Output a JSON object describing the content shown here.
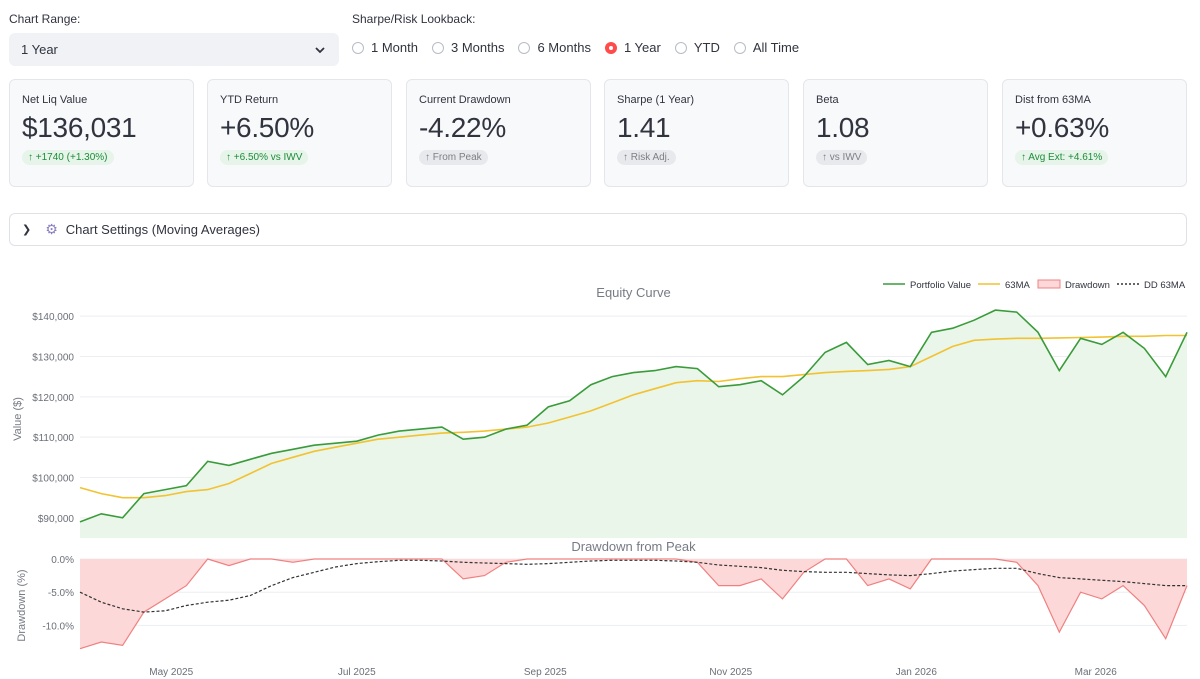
{
  "controls": {
    "range_label": "Chart Range:",
    "range_value": "1 Year",
    "lookback_label": "Sharpe/Risk Lookback:",
    "lookback_options": [
      "1 Month",
      "3 Months",
      "6 Months",
      "1 Year",
      "YTD",
      "All Time"
    ],
    "lookback_selected": "1 Year"
  },
  "metrics": [
    {
      "title": "Net Liq Value",
      "value": "$136,031",
      "delta": "↑ +1740 (+1.30%)",
      "tone": "green"
    },
    {
      "title": "YTD Return",
      "value": "+6.50%",
      "delta": "↑ +6.50% vs IWV",
      "tone": "green"
    },
    {
      "title": "Current Drawdown",
      "value": "-4.22%",
      "delta": "↑ From Peak",
      "tone": "neutral"
    },
    {
      "title": "Sharpe (1 Year)",
      "value": "1.41",
      "delta": "↑ Risk Adj.",
      "tone": "neutral"
    },
    {
      "title": "Beta",
      "value": "1.08",
      "delta": "↑ vs IWV",
      "tone": "neutral"
    },
    {
      "title": "Dist from 63MA",
      "value": "+0.63%",
      "delta": "↑ Avg Ext: +4.61%",
      "tone": "green"
    }
  ],
  "expander": {
    "label": "Chart Settings (Moving Averages)",
    "icon": "gear-icon"
  },
  "colors": {
    "portfolio": "#3a9b3a",
    "ma": "#f2c230",
    "drawdown": "#f08080",
    "dd_ma": "#333333",
    "fill": "#e9f6e9",
    "dd_fill": "#fdd8d8"
  },
  "chart_data": [
    {
      "type": "line",
      "title": "Equity Curve",
      "ylabel": "Value ($)",
      "ylim": [
        85000,
        144000
      ],
      "yticks": [
        90000,
        100000,
        110000,
        120000,
        130000,
        140000
      ],
      "ytick_labels": [
        "$90,000",
        "$100,000",
        "$110,000",
        "$120,000",
        "$130,000",
        "$140,000"
      ],
      "legend": [
        "Portfolio Value",
        "63MA",
        "Drawdown",
        "DD 63MA"
      ],
      "legend_position": "top-right",
      "x": [
        "2025-04-01",
        "2025-04-08",
        "2025-04-15",
        "2025-04-22",
        "2025-04-29",
        "2025-05-06",
        "2025-05-13",
        "2025-05-20",
        "2025-05-27",
        "2025-06-03",
        "2025-06-10",
        "2025-06-17",
        "2025-06-24",
        "2025-07-01",
        "2025-07-08",
        "2025-07-15",
        "2025-07-22",
        "2025-07-29",
        "2025-08-05",
        "2025-08-12",
        "2025-08-19",
        "2025-08-26",
        "2025-09-02",
        "2025-09-09",
        "2025-09-16",
        "2025-09-23",
        "2025-09-30",
        "2025-10-07",
        "2025-10-14",
        "2025-10-21",
        "2025-10-28",
        "2025-11-04",
        "2025-11-11",
        "2025-11-18",
        "2025-11-25",
        "2025-12-02",
        "2025-12-09",
        "2025-12-16",
        "2025-12-23",
        "2025-12-30",
        "2026-01-06",
        "2026-01-13",
        "2026-01-20",
        "2026-01-27",
        "2026-02-03",
        "2026-02-10",
        "2026-02-17",
        "2026-02-24",
        "2026-03-03",
        "2026-03-10",
        "2026-03-17",
        "2026-03-24",
        "2026-03-31"
      ],
      "series": [
        {
          "name": "Portfolio Value",
          "values": [
            89000,
            91000,
            90000,
            96000,
            97000,
            98000,
            104000,
            103000,
            104500,
            106000,
            107000,
            108000,
            108500,
            109000,
            110500,
            111500,
            112000,
            112500,
            109500,
            110000,
            112000,
            113000,
            117500,
            119000,
            123000,
            125000,
            126000,
            126500,
            127500,
            127000,
            122500,
            123000,
            124000,
            120500,
            125000,
            131000,
            133500,
            128000,
            129000,
            127500,
            136000,
            137000,
            139000,
            141500,
            141000,
            136000,
            126500,
            134500,
            133000,
            136000,
            132000,
            125000,
            136000
          ]
        },
        {
          "name": "63MA",
          "values": [
            97500,
            96000,
            95000,
            95000,
            95500,
            96500,
            97000,
            98500,
            101000,
            103500,
            105000,
            106500,
            107500,
            108500,
            109500,
            110000,
            110500,
            111000,
            111200,
            111500,
            112000,
            112500,
            113500,
            115000,
            116500,
            118500,
            120500,
            122000,
            123500,
            124000,
            123800,
            124500,
            125000,
            125000,
            125500,
            126000,
            126300,
            126500,
            126800,
            127500,
            130000,
            132500,
            134000,
            134300,
            134500,
            134500,
            134600,
            134700,
            134800,
            135000,
            135000,
            135200,
            135200
          ]
        }
      ]
    },
    {
      "type": "area",
      "title": "Drawdown from Peak",
      "ylabel": "Drawdown (%)",
      "ylim": [
        -14,
        0
      ],
      "yticks": [
        0,
        -5,
        -10
      ],
      "ytick_labels": [
        "0.0%",
        "-5.0%",
        "-10.0%"
      ],
      "xtick_labels": [
        "May 2025",
        "Jul 2025",
        "Sep 2025",
        "Nov 2025",
        "Jan 2026",
        "Mar 2026"
      ],
      "xticks": [
        "2025-05-01",
        "2025-07-01",
        "2025-09-01",
        "2025-11-01",
        "2026-01-01",
        "2026-03-01"
      ],
      "xlim": [
        "2025-04-01",
        "2026-03-31"
      ],
      "x": [
        "2025-04-01",
        "2025-04-08",
        "2025-04-15",
        "2025-04-22",
        "2025-04-29",
        "2025-05-06",
        "2025-05-13",
        "2025-05-20",
        "2025-05-27",
        "2025-06-03",
        "2025-06-10",
        "2025-06-17",
        "2025-06-24",
        "2025-07-01",
        "2025-07-08",
        "2025-07-15",
        "2025-07-22",
        "2025-07-29",
        "2025-08-05",
        "2025-08-12",
        "2025-08-19",
        "2025-08-26",
        "2025-09-02",
        "2025-09-09",
        "2025-09-16",
        "2025-09-23",
        "2025-09-30",
        "2025-10-07",
        "2025-10-14",
        "2025-10-21",
        "2025-10-28",
        "2025-11-04",
        "2025-11-11",
        "2025-11-18",
        "2025-11-25",
        "2025-12-02",
        "2025-12-09",
        "2025-12-16",
        "2025-12-23",
        "2025-12-30",
        "2026-01-06",
        "2026-01-13",
        "2026-01-20",
        "2026-01-27",
        "2026-02-03",
        "2026-02-10",
        "2026-02-17",
        "2026-02-24",
        "2026-03-03",
        "2026-03-10",
        "2026-03-17",
        "2026-03-24",
        "2026-03-31"
      ],
      "series": [
        {
          "name": "Drawdown",
          "values": [
            -13.5,
            -12.5,
            -13,
            -8,
            -6,
            -4,
            0,
            -1,
            0,
            0,
            -0.5,
            0,
            0,
            0,
            0,
            0,
            0,
            0,
            -3,
            -2.5,
            -0.5,
            0,
            0,
            0,
            0,
            0,
            0,
            0,
            0,
            -0.5,
            -4,
            -4,
            -3,
            -6,
            -2,
            0,
            0,
            -4,
            -3,
            -4.5,
            0,
            0,
            0,
            0,
            -0.5,
            -4,
            -11,
            -5,
            -6,
            -4,
            -7,
            -12,
            -4
          ]
        },
        {
          "name": "DD 63MA",
          "values": [
            -5,
            -6.5,
            -7.5,
            -8,
            -7.8,
            -7,
            -6.5,
            -6.2,
            -5.5,
            -4,
            -2.8,
            -2,
            -1.2,
            -0.7,
            -0.4,
            -0.2,
            -0.2,
            -0.3,
            -0.5,
            -0.6,
            -0.7,
            -0.8,
            -0.7,
            -0.5,
            -0.3,
            -0.2,
            -0.2,
            -0.2,
            -0.3,
            -0.5,
            -0.9,
            -1.1,
            -1.3,
            -1.7,
            -1.9,
            -2,
            -2,
            -2.2,
            -2.4,
            -2.5,
            -2.2,
            -1.8,
            -1.6,
            -1.4,
            -1.4,
            -2.2,
            -2.8,
            -3,
            -3.2,
            -3.4,
            -3.7,
            -4,
            -4
          ]
        }
      ]
    }
  ]
}
